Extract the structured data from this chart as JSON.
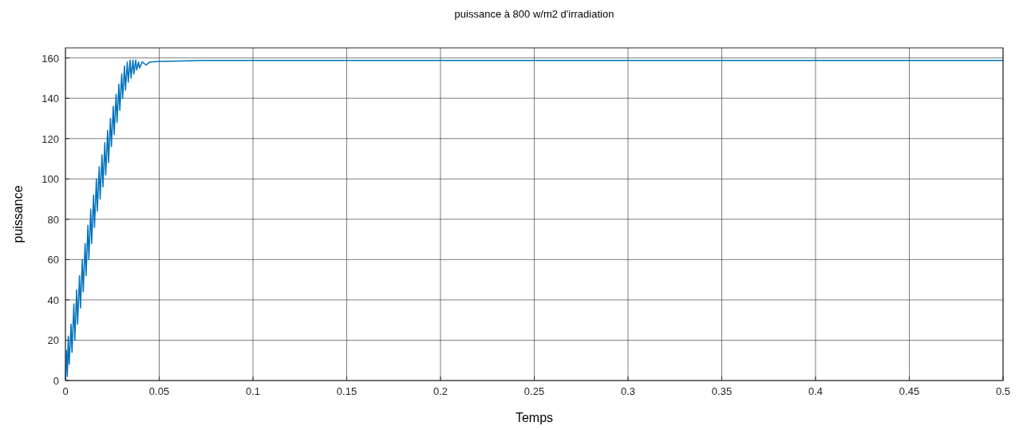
{
  "chart_data": {
    "type": "line",
    "title": "puissance à 800 w/m2 d'irradiation",
    "xlabel": "Temps",
    "ylabel": "puissance",
    "xlim": [
      0,
      0.5
    ],
    "xticks": [
      0,
      0.05,
      0.1,
      0.15,
      0.2,
      0.25,
      0.3,
      0.35,
      0.4,
      0.45,
      0.5
    ],
    "ylim": [
      0,
      165
    ],
    "yticks": [
      0,
      20,
      40,
      60,
      80,
      100,
      120,
      140,
      160
    ],
    "grid": true,
    "series": [
      {
        "color": "#0072bd",
        "x": [
          0,
          0.0005,
          0.001,
          0.0015,
          0.002,
          0.003,
          0.0035,
          0.0045,
          0.005,
          0.006,
          0.0065,
          0.0075,
          0.008,
          0.009,
          0.0095,
          0.0105,
          0.011,
          0.012,
          0.0125,
          0.0135,
          0.014,
          0.015,
          0.0155,
          0.0165,
          0.017,
          0.018,
          0.0185,
          0.0195,
          0.02,
          0.021,
          0.0215,
          0.0225,
          0.023,
          0.024,
          0.0245,
          0.0255,
          0.026,
          0.027,
          0.0275,
          0.0285,
          0.029,
          0.03,
          0.0305,
          0.0315,
          0.032,
          0.033,
          0.0335,
          0.0345,
          0.035,
          0.036,
          0.0365,
          0.0375,
          0.038,
          0.039,
          0.0395,
          0.041,
          0.043,
          0.045,
          0.05,
          0.06,
          0.075,
          0.5
        ],
        "values": [
          0,
          15,
          2,
          22,
          8,
          28,
          14,
          38,
          20,
          45,
          28,
          52,
          36,
          60,
          44,
          68,
          52,
          77,
          60,
          85,
          68,
          92,
          76,
          100,
          84,
          106,
          90,
          112,
          96,
          118,
          102,
          124,
          108,
          130,
          116,
          136,
          122,
          142,
          128,
          147,
          134,
          152,
          140,
          156,
          144,
          158,
          148,
          159,
          150,
          159,
          152,
          159,
          154,
          158,
          155,
          158,
          156.5,
          158,
          158.3,
          158.5,
          158.8,
          158.8
        ]
      }
    ]
  }
}
